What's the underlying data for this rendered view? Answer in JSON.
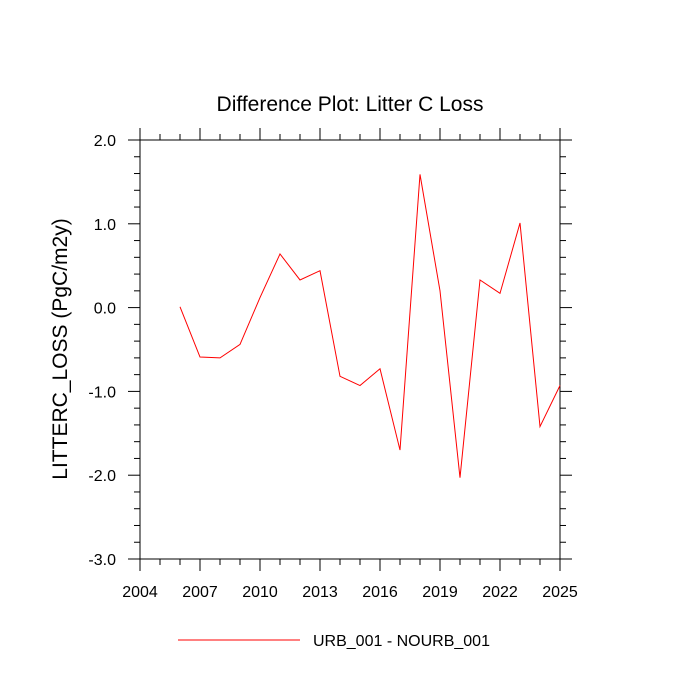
{
  "chart_data": {
    "type": "line",
    "title": "Difference Plot: Litter C Loss",
    "xlabel": "",
    "ylabel": "LITTERC_LOSS  (PgC/m2y)",
    "xlim": [
      2004,
      2025
    ],
    "ylim": [
      -3.0,
      2.0
    ],
    "x_ticks": [
      2004,
      2007,
      2010,
      2013,
      2016,
      2019,
      2022,
      2025
    ],
    "x_tick_labels": [
      "2004",
      "2007",
      "2010",
      "2013",
      "2016",
      "2019",
      "2022",
      "2025"
    ],
    "y_ticks": [
      -3.0,
      -2.0,
      -1.0,
      0.0,
      1.0,
      2.0
    ],
    "y_tick_labels": [
      "-3.0",
      "-2.0",
      "-1.0",
      "0.0",
      "1.0",
      "2.0"
    ],
    "grid": false,
    "legend_position": "bottom",
    "series": [
      {
        "name": "URB_001 - NOURB_001",
        "color": "#ff0000",
        "x": [
          2006,
          2007,
          2008,
          2009,
          2010,
          2011,
          2012,
          2013,
          2014,
          2015,
          2016,
          2017,
          2018,
          2019,
          2020,
          2021,
          2022,
          2023,
          2024,
          2025
        ],
        "values": [
          0.01,
          -0.59,
          -0.6,
          -0.44,
          0.12,
          0.64,
          0.33,
          0.44,
          -0.82,
          -0.93,
          -0.73,
          -1.7,
          1.59,
          0.2,
          -2.03,
          0.33,
          0.17,
          1.01,
          -1.42,
          -0.93
        ]
      }
    ]
  }
}
